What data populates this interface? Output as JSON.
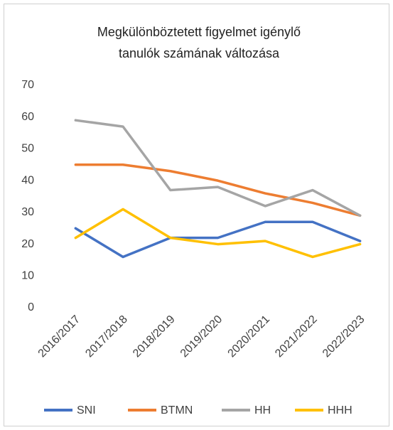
{
  "chart_data": {
    "type": "line",
    "title": [
      "Megkülönböztetett figyelmet igénylő",
      "tanulók számának változása"
    ],
    "categories": [
      "2016/2017",
      "2017/2018",
      "2018/2019",
      "2019/2020",
      "2020/2021",
      "2021/2022",
      "2022/2023"
    ],
    "series": [
      {
        "name": "SNI",
        "color": "#4472c4",
        "values": [
          25,
          16,
          22,
          22,
          27,
          27,
          21
        ]
      },
      {
        "name": "BTMN",
        "color": "#ed7d31",
        "values": [
          45,
          45,
          43,
          40,
          36,
          33,
          29
        ]
      },
      {
        "name": "HH",
        "color": "#a5a5a5",
        "values": [
          59,
          57,
          37,
          38,
          32,
          37,
          29
        ]
      },
      {
        "name": "HHH",
        "color": "#ffc000",
        "values": [
          22,
          31,
          22,
          20,
          21,
          16,
          20
        ]
      }
    ],
    "ylim": [
      0,
      70
    ],
    "yticks": [
      0,
      10,
      20,
      30,
      40,
      50,
      60,
      70
    ],
    "grid": false,
    "legend": "bottom"
  }
}
